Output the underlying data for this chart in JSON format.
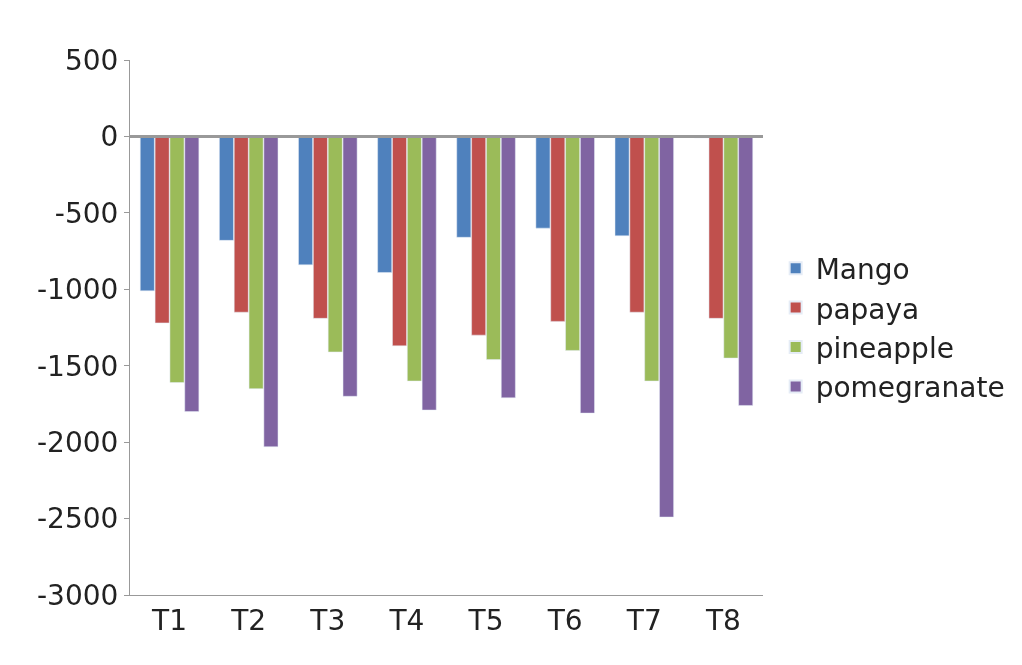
{
  "chart_data": {
    "type": "bar",
    "categories": [
      "T1",
      "T2",
      "T3",
      "T4",
      "T5",
      "T6",
      "T7",
      "T8"
    ],
    "series": [
      {
        "name": "Mango",
        "color": "#4f81bd",
        "values": [
          -1010,
          -680,
          -840,
          -890,
          -660,
          -600,
          -650,
          -10
        ]
      },
      {
        "name": "papaya",
        "color": "#c0504d",
        "values": [
          -1220,
          -1150,
          -1190,
          -1370,
          -1300,
          -1210,
          -1150,
          -1190
        ]
      },
      {
        "name": "pineapple",
        "color": "#9bbb59",
        "values": [
          -1610,
          -1650,
          -1410,
          -1600,
          -1460,
          -1400,
          -1600,
          -1450
        ]
      },
      {
        "name": "pomegranate",
        "color": "#8064a2",
        "values": [
          -1800,
          -2030,
          -1700,
          -1790,
          -1710,
          -1810,
          -2490,
          -1760
        ]
      }
    ],
    "ylim": [
      -3000,
      500
    ],
    "yticks": [
      -3000,
      -2500,
      -2000,
      -1500,
      -1000,
      -500,
      0,
      500
    ],
    "ref_lines": [
      {
        "axis": "y",
        "value": 0,
        "color": "#999999"
      }
    ],
    "legend": "right"
  }
}
